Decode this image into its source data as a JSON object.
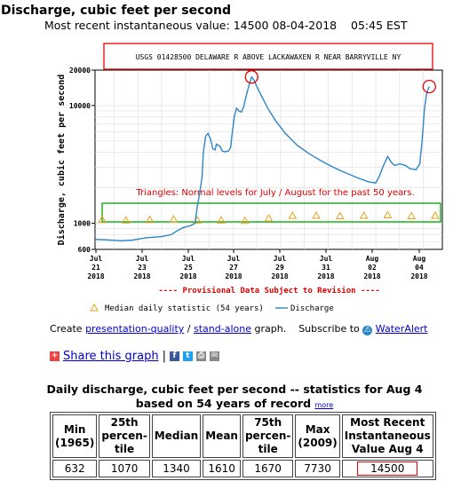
{
  "page": {
    "title": "Discharge, cubic feet per second",
    "recent_label": "Most recent instantaneous value:",
    "recent_value": "14500",
    "recent_date": "08-04-2018",
    "recent_time": "05:45 EST"
  },
  "chart_data": {
    "type": "line",
    "station": "USGS 01428500 DELAWARE R ABOVE LACKAWAXEN R NEAR BARRYVILLE NY",
    "ylabel": "Discharge, cubic feet per second",
    "yscale": "log",
    "ylim": [
      600,
      20000
    ],
    "yticks": [
      "20000",
      "10000",
      "1000",
      "600"
    ],
    "xticks": [
      {
        "l1": "Jul",
        "l2": "21",
        "l3": "2018"
      },
      {
        "l1": "Jul",
        "l2": "23",
        "l3": "2018"
      },
      {
        "l1": "Jul",
        "l2": "25",
        "l3": "2018"
      },
      {
        "l1": "Jul",
        "l2": "27",
        "l3": "2018"
      },
      {
        "l1": "Jul",
        "l2": "29",
        "l3": "2018"
      },
      {
        "l1": "Jul",
        "l2": "31",
        "l3": "2018"
      },
      {
        "l1": "Aug",
        "l2": "02",
        "l3": "2018"
      },
      {
        "l1": "Aug",
        "l2": "04",
        "l3": "2018"
      }
    ],
    "annotation": "Triangles: Normal levels for July / August for the past 50 years.",
    "provisional_note": "---- Provisional Data Subject to Revision ----",
    "legend": {
      "median": "Median daily statistic (54 years)",
      "discharge": "Discharge"
    },
    "discharge_series": [
      {
        "day": 20.2,
        "q": 730
      },
      {
        "day": 20.8,
        "q": 720
      },
      {
        "day": 21.3,
        "q": 710
      },
      {
        "day": 21.8,
        "q": 720
      },
      {
        "day": 22.3,
        "q": 750
      },
      {
        "day": 22.6,
        "q": 760
      },
      {
        "day": 23.0,
        "q": 770
      },
      {
        "day": 23.4,
        "q": 800
      },
      {
        "day": 23.6,
        "q": 850
      },
      {
        "day": 23.9,
        "q": 920
      },
      {
        "day": 24.2,
        "q": 950
      },
      {
        "day": 24.4,
        "q": 1000
      },
      {
        "day": 24.5,
        "q": 1400
      },
      {
        "day": 24.6,
        "q": 1800
      },
      {
        "day": 24.7,
        "q": 2500
      },
      {
        "day": 24.75,
        "q": 4000
      },
      {
        "day": 24.85,
        "q": 5500
      },
      {
        "day": 24.95,
        "q": 5800
      },
      {
        "day": 25.05,
        "q": 5200
      },
      {
        "day": 25.15,
        "q": 4300
      },
      {
        "day": 25.25,
        "q": 4200
      },
      {
        "day": 25.3,
        "q": 4700
      },
      {
        "day": 25.45,
        "q": 4500
      },
      {
        "day": 25.55,
        "q": 4100
      },
      {
        "day": 25.65,
        "q": 4050
      },
      {
        "day": 25.8,
        "q": 4100
      },
      {
        "day": 25.9,
        "q": 4400
      },
      {
        "day": 25.95,
        "q": 5500
      },
      {
        "day": 26.05,
        "q": 8000
      },
      {
        "day": 26.15,
        "q": 9500
      },
      {
        "day": 26.25,
        "q": 9000
      },
      {
        "day": 26.35,
        "q": 8800
      },
      {
        "day": 26.45,
        "q": 9800
      },
      {
        "day": 26.55,
        "q": 12000
      },
      {
        "day": 26.68,
        "q": 15000
      },
      {
        "day": 26.78,
        "q": 17500
      },
      {
        "day": 26.88,
        "q": 16500
      },
      {
        "day": 27.0,
        "q": 14500
      },
      {
        "day": 27.25,
        "q": 11500
      },
      {
        "day": 27.5,
        "q": 9200
      },
      {
        "day": 27.8,
        "q": 7400
      },
      {
        "day": 28.2,
        "q": 5800
      },
      {
        "day": 28.7,
        "q": 4600
      },
      {
        "day": 29.2,
        "q": 3900
      },
      {
        "day": 29.7,
        "q": 3400
      },
      {
        "day": 30.2,
        "q": 3000
      },
      {
        "day": 30.7,
        "q": 2700
      },
      {
        "day": 31.2,
        "q": 2450
      },
      {
        "day": 31.7,
        "q": 2250
      },
      {
        "day": 32.0,
        "q": 2200
      },
      {
        "day": 32.15,
        "q": 2500
      },
      {
        "day": 32.3,
        "q": 3000
      },
      {
        "day": 32.5,
        "q": 3700
      },
      {
        "day": 32.65,
        "q": 3300
      },
      {
        "day": 32.8,
        "q": 3100
      },
      {
        "day": 33.0,
        "q": 3200
      },
      {
        "day": 33.25,
        "q": 3100
      },
      {
        "day": 33.45,
        "q": 2900
      },
      {
        "day": 33.7,
        "q": 2850
      },
      {
        "day": 33.85,
        "q": 3200
      },
      {
        "day": 33.95,
        "q": 5000
      },
      {
        "day": 34.05,
        "q": 9500
      },
      {
        "day": 34.15,
        "q": 13000
      },
      {
        "day": 34.25,
        "q": 14500
      }
    ],
    "median_days": [
      20.5,
      21.5,
      22.5,
      23.5,
      24.5,
      25.5,
      26.5,
      27.5,
      28.5,
      29.5,
      30.5,
      31.5,
      32.5,
      33.5,
      34.5
    ],
    "median_values": [
      1070,
      1060,
      1070,
      1080,
      1060,
      1060,
      1050,
      1100,
      1160,
      1160,
      1150,
      1160,
      1170,
      1150,
      1160
    ],
    "colors": {
      "discharge": "#2b86c8",
      "median": "#e6a117",
      "annotation": "#e00000",
      "box": "#00a000"
    }
  },
  "links": {
    "create": "Create",
    "presentation": "presentation-quality",
    "slash": "/",
    "standalone": "stand-alone",
    "graph": "graph.",
    "subscribe": "Subscribe to",
    "wateralert": "WaterAlert"
  },
  "share": {
    "label": "Share this graph",
    "sep": "|"
  },
  "stats": {
    "title": "Daily discharge, cubic feet per second -- statistics for Aug 4",
    "subtitle": "based on 54 years of record",
    "more": "more",
    "headers": [
      [
        "Min",
        "(1965)"
      ],
      [
        "25th",
        "percen-",
        "tile"
      ],
      [
        "Median"
      ],
      [
        "Mean"
      ],
      [
        "75th",
        "percen-",
        "tile"
      ],
      [
        "Max",
        "(2009)"
      ],
      [
        "Most Recent",
        "Instantaneous",
        "Value Aug 4"
      ]
    ],
    "values": [
      "632",
      "1070",
      "1340",
      "1610",
      "1670",
      "7730",
      "14500"
    ]
  }
}
